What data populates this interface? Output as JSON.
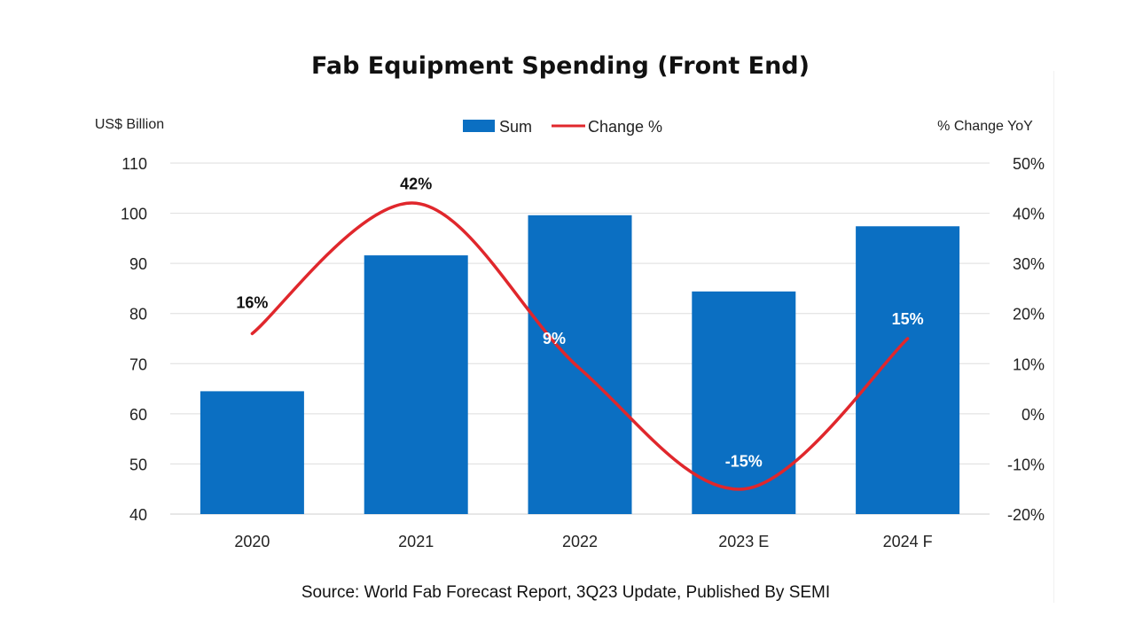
{
  "chart_data": {
    "type": "bar",
    "title": "Fab Equipment Spending (Front End)",
    "left_axis_label": "US$ Billion",
    "right_axis_label": "% Change YoY",
    "source": "Source: World Fab Forecast Report, 3Q23 Update, Published By SEMI",
    "categories": [
      "2020",
      "2021",
      "2022",
      "2023 E",
      "2024 F"
    ],
    "series": [
      {
        "name": "Sum",
        "type": "bar",
        "axis": "left",
        "color": "#0b6fc2",
        "values": [
          64.5,
          91.6,
          99.6,
          84.4,
          97.4
        ]
      },
      {
        "name": "Change %",
        "type": "line",
        "axis": "right",
        "color": "#e0272c",
        "values": [
          16,
          42,
          9,
          -15,
          15
        ],
        "labels": [
          "16%",
          "42%",
          "9%",
          "-15%",
          "15%"
        ]
      }
    ],
    "left_axis": {
      "min": 40,
      "max": 110,
      "ticks": [
        "40",
        "50",
        "60",
        "70",
        "80",
        "90",
        "100",
        "110"
      ]
    },
    "right_axis": {
      "min": -20,
      "max": 50,
      "ticks": [
        "-20%",
        "-10%",
        "0%",
        "10%",
        "20%",
        "30%",
        "40%",
        "50%"
      ]
    },
    "grid": true,
    "legend_position": "top-center",
    "line_smooth": true
  }
}
